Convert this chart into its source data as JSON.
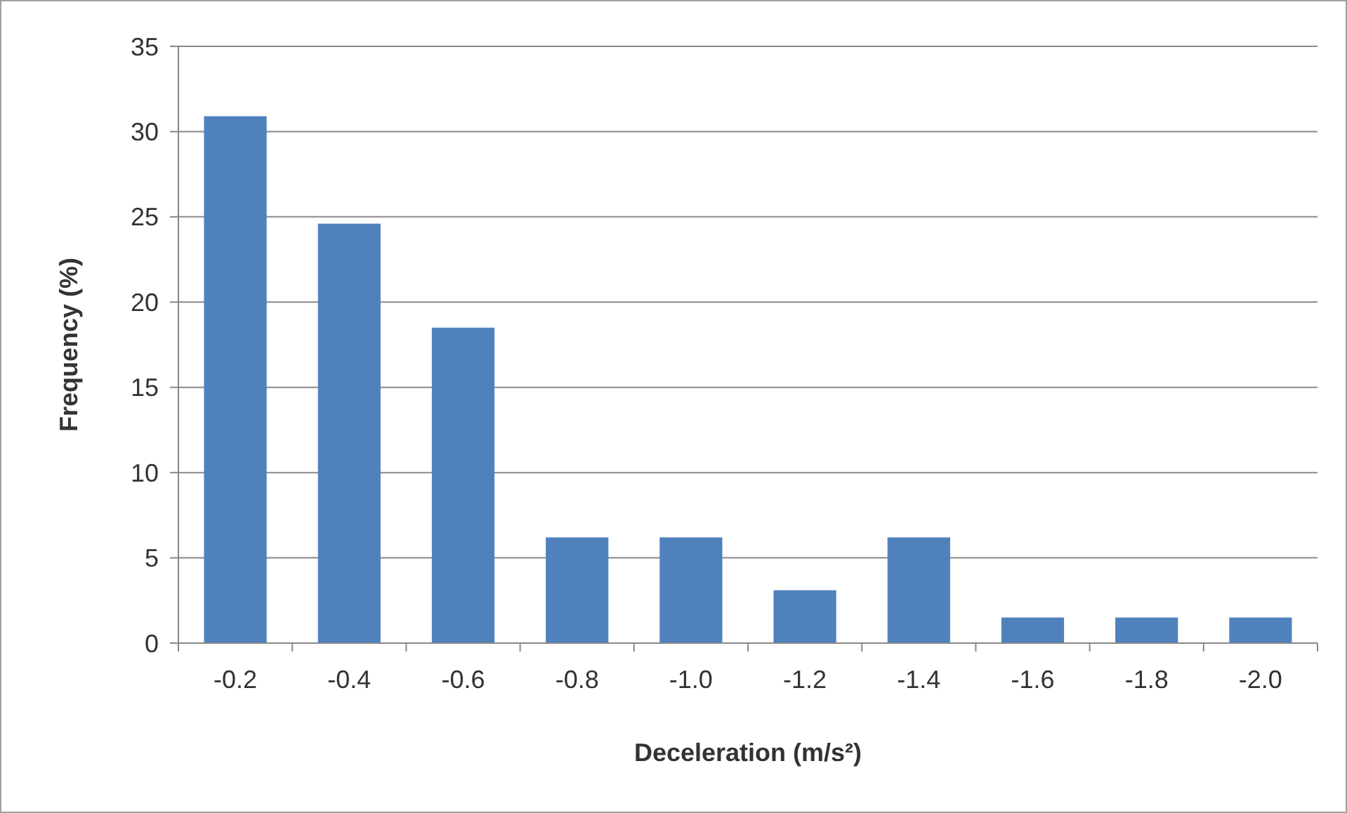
{
  "chart_data": {
    "type": "bar",
    "xlabel": "Deceleration (m/s²)",
    "ylabel": "Frequency (%)",
    "categories": [
      "-0.2",
      "-0.4",
      "-0.6",
      "-0.8",
      "-1.0",
      "-1.2",
      "-1.4",
      "-1.6",
      "-1.8",
      "-2.0"
    ],
    "values": [
      30.9,
      24.6,
      18.5,
      6.2,
      6.2,
      3.1,
      6.2,
      1.5,
      1.5,
      1.5
    ],
    "color": "#4f81bd",
    "ylim": [
      0,
      35
    ],
    "yticks": [
      0,
      5,
      10,
      15,
      20,
      25,
      30,
      35
    ],
    "grid": "y"
  }
}
